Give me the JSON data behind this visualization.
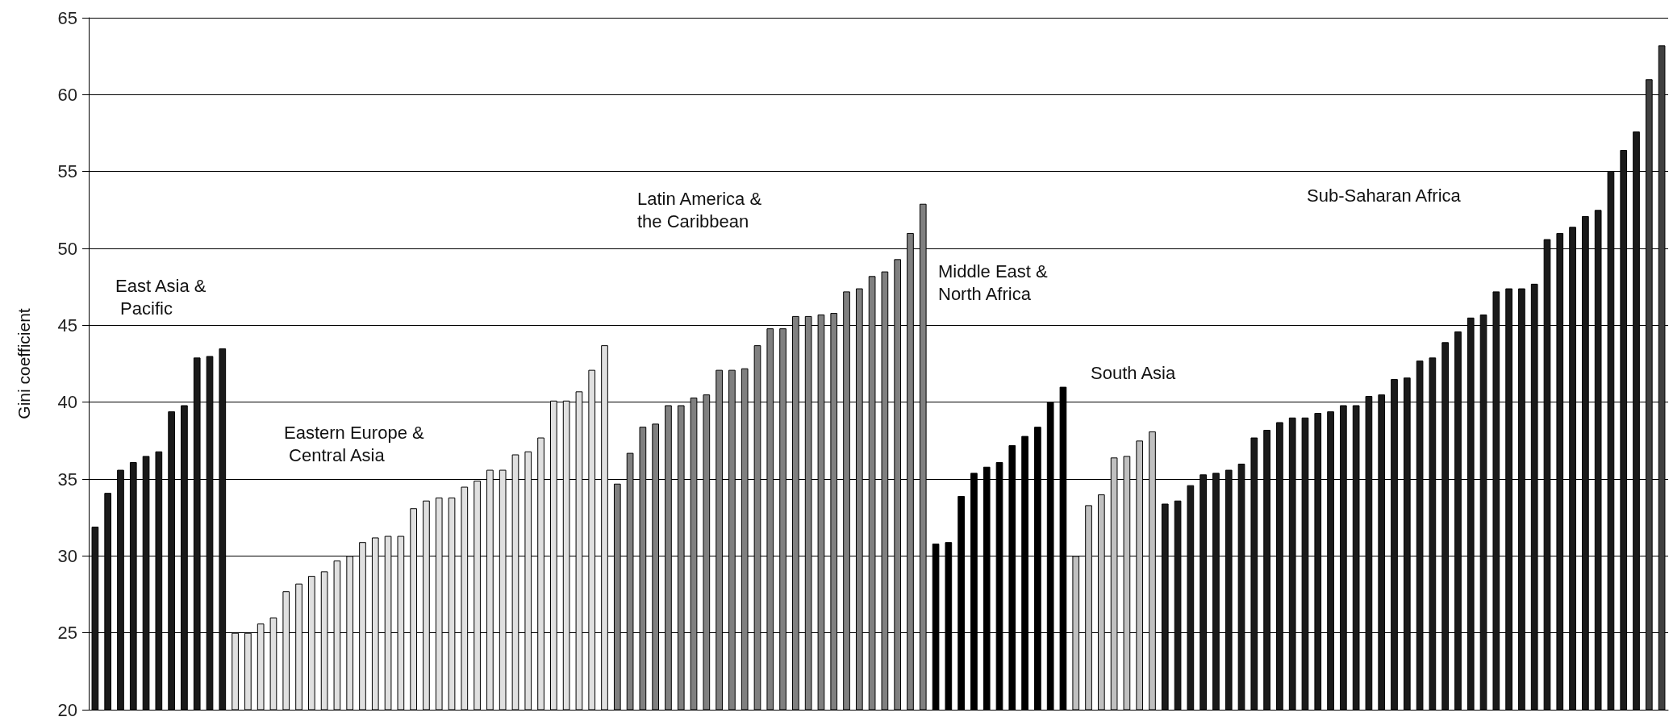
{
  "chart_data": {
    "type": "bar",
    "ylabel": "Gini coefficient",
    "categories": [
      null,
      null,
      null,
      null,
      null,
      null,
      null,
      null,
      null,
      null,
      null,
      null,
      null,
      null,
      null,
      null,
      null,
      null,
      null,
      null,
      null,
      null,
      null,
      null,
      null,
      null,
      null,
      null,
      null,
      null,
      null,
      null,
      null,
      null,
      null,
      null,
      null,
      null,
      null,
      null,
      null,
      null,
      null,
      null,
      null,
      null,
      null,
      null,
      null,
      null,
      null,
      null,
      null,
      null,
      null,
      null,
      null,
      null,
      null,
      null,
      null,
      null,
      null,
      null,
      null,
      null,
      null,
      null,
      null,
      null,
      null,
      null,
      null,
      null,
      null,
      null,
      null,
      null,
      null,
      null,
      null,
      null,
      null,
      null,
      null,
      null,
      null,
      null,
      null,
      null,
      null,
      null,
      null,
      null,
      null,
      null,
      null,
      null,
      null,
      null,
      null,
      null,
      null,
      null,
      null,
      null,
      null,
      null,
      null,
      null,
      null,
      null,
      null,
      null,
      null,
      null,
      null,
      null,
      null,
      null,
      null,
      null,
      null,
      null
    ],
    "values": [
      31.9,
      34.1,
      35.6,
      36.1,
      36.5,
      36.8,
      39.4,
      39.8,
      42.9,
      43.0,
      43.5,
      25.0,
      25.0,
      25.6,
      26.0,
      27.7,
      28.2,
      28.7,
      29.0,
      29.7,
      30.0,
      30.9,
      31.2,
      31.3,
      31.3,
      33.1,
      33.6,
      33.8,
      33.8,
      34.5,
      34.9,
      35.6,
      35.6,
      36.6,
      36.8,
      37.7,
      40.1,
      40.1,
      40.7,
      42.1,
      43.7,
      34.7,
      36.7,
      38.4,
      38.6,
      39.8,
      39.8,
      40.3,
      40.5,
      42.1,
      42.1,
      42.2,
      43.7,
      44.8,
      44.8,
      45.6,
      45.6,
      45.7,
      45.8,
      47.2,
      47.4,
      48.2,
      48.5,
      49.3,
      51.0,
      52.9,
      30.8,
      30.9,
      33.9,
      35.4,
      35.8,
      36.1,
      37.2,
      37.8,
      38.4,
      40.0,
      41.0,
      30.0,
      33.3,
      34.0,
      36.4,
      36.5,
      37.5,
      38.1,
      33.4,
      33.6,
      34.6,
      35.3,
      35.4,
      35.6,
      36.0,
      37.7,
      38.2,
      38.7,
      39.0,
      39.0,
      39.3,
      39.4,
      39.8,
      39.8,
      40.4,
      40.5,
      41.5,
      41.6,
      42.7,
      42.9,
      43.9,
      44.6,
      45.5,
      45.7,
      47.2,
      47.4,
      47.4,
      47.7,
      50.6,
      51.0,
      51.4,
      52.1,
      52.5,
      55.0,
      56.4,
      57.6,
      61.0,
      63.2
    ],
    "colors": [
      "#1a1a1a",
      "#1a1a1a",
      "#1a1a1a",
      "#1a1a1a",
      "#1a1a1a",
      "#1a1a1a",
      "#1a1a1a",
      "#1a1a1a",
      "#1a1a1a",
      "#1a1a1a",
      "#1a1a1a",
      "#e0e0e0",
      "#e0e0e0",
      "#e0e0e0",
      "#e0e0e0",
      "#e0e0e0",
      "#e0e0e0",
      "#e0e0e0",
      "#e0e0e0",
      "#e0e0e0",
      "#e0e0e0",
      "#e0e0e0",
      "#e0e0e0",
      "#e0e0e0",
      "#e0e0e0",
      "#e0e0e0",
      "#e0e0e0",
      "#e0e0e0",
      "#e0e0e0",
      "#e0e0e0",
      "#e0e0e0",
      "#e0e0e0",
      "#e0e0e0",
      "#e0e0e0",
      "#e0e0e0",
      "#e0e0e0",
      "#e0e0e0",
      "#e0e0e0",
      "#e0e0e0",
      "#e0e0e0",
      "#e0e0e0",
      "#808080",
      "#808080",
      "#808080",
      "#808080",
      "#808080",
      "#808080",
      "#808080",
      "#808080",
      "#808080",
      "#808080",
      "#808080",
      "#808080",
      "#808080",
      "#808080",
      "#808080",
      "#808080",
      "#808080",
      "#808080",
      "#808080",
      "#808080",
      "#808080",
      "#808080",
      "#808080",
      "#808080",
      "#808080",
      "#000000",
      "#000000",
      "#000000",
      "#000000",
      "#000000",
      "#000000",
      "#000000",
      "#000000",
      "#000000",
      "#000000",
      "#000000",
      "#c0c0c0",
      "#c0c0c0",
      "#c0c0c0",
      "#c0c0c0",
      "#c0c0c0",
      "#c0c0c0",
      "#c0c0c0",
      "#1a1a1a",
      "#1a1a1a",
      "#1a1a1a",
      "#1a1a1a",
      "#1a1a1a",
      "#1a1a1a",
      "#1a1a1a",
      "#1a1a1a",
      "#1a1a1a",
      "#1a1a1a",
      "#1a1a1a",
      "#1a1a1a",
      "#1a1a1a",
      "#1a1a1a",
      "#1a1a1a",
      "#1a1a1a",
      "#1a1a1a",
      "#1a1a1a",
      "#1a1a1a",
      "#1a1a1a",
      "#1a1a1a",
      "#1a1a1a",
      "#1a1a1a",
      "#1a1a1a",
      "#1a1a1a",
      "#1a1a1a",
      "#1a1a1a",
      "#1a1a1a",
      "#1a1a1a",
      "#1a1a1a",
      "#1a1a1a",
      "#1a1a1a",
      "#1a1a1a",
      "#1a1a1a",
      "#1a1a1a",
      "#1a1a1a",
      "#1a1a1a",
      "#1a1a1a",
      "#404040",
      "#404040"
    ],
    "annotations": [
      "East Asia &\n Pacific",
      "Eastern Europe &\n Central Asia",
      "Latin America &\nthe Caribbean",
      "Middle East &\nNorth Africa",
      "South Asia",
      "Sub-Saharan Africa"
    ],
    "ylim": [
      20,
      65
    ],
    "yticks": [
      20,
      25,
      30,
      35,
      40,
      45,
      50,
      55,
      60,
      65
    ],
    "grid": "y"
  }
}
